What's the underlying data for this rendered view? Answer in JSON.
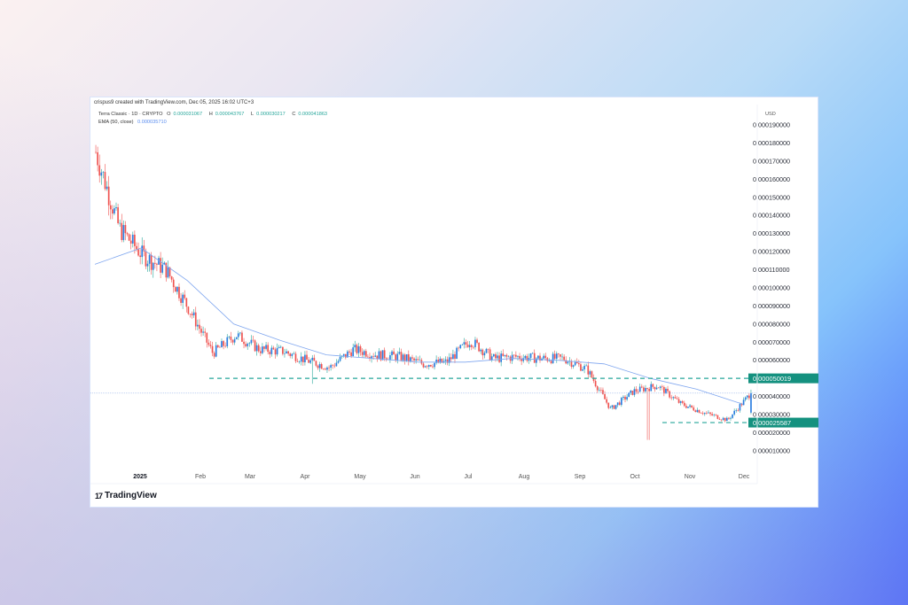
{
  "header": {
    "credit": "crispus9 created with TradingView.com, Dec 05, 2025 16:02 UTC+3"
  },
  "legend": {
    "symbol": "Terra Classic · 1D · CRYPTO",
    "open_label": "O",
    "open": "0.000031067",
    "high_label": "H",
    "high": "0.000043767",
    "low_label": "L",
    "low": "0.000030217",
    "close_label": "C",
    "close": "0.000041863",
    "ema_label": "EMA (50, close)",
    "ema_value": "0.000035710"
  },
  "axis": {
    "currency": "USD"
  },
  "footer": {
    "brand": "TradingView",
    "brand_mark": "17"
  },
  "colors": {
    "up": "#2a7de1",
    "up_wick": "#26a69a",
    "down": "#ef5350",
    "ema": "#7fa6ef",
    "level": "#26a69a",
    "level_label_bg": "#14917f"
  },
  "chart_data": {
    "type": "candlestick",
    "title": "Terra Classic · 1D · CRYPTO",
    "xlabel": "",
    "ylabel": "USD",
    "ylim": [
      5e-06,
      0.000195
    ],
    "y_ticks": [
      "0.000190000",
      "0.000180000",
      "0.000170000",
      "0.000160000",
      "0.000150000",
      "0.000140000",
      "0.000130000",
      "0.000120000",
      "0.000110000",
      "0.000100000",
      "0.000090000",
      "0.000080000",
      "0.000070000",
      "0.000060000",
      "0.000040000",
      "0.000030000",
      "0.000020000",
      "0.000010000"
    ],
    "x_ticks": [
      "2025",
      "Feb",
      "Mar",
      "Apr",
      "May",
      "Jun",
      "Jul",
      "Aug",
      "Sep",
      "Oct",
      "Nov",
      "Dec"
    ],
    "grid": false,
    "ohlc_last": {
      "open": 3.1067e-05,
      "high": 4.3767e-05,
      "low": 3.0217e-05,
      "close": 4.1863e-05
    },
    "levels": [
      {
        "name": "resistance",
        "value": 5.0019e-05,
        "label": "0.000050019"
      },
      {
        "name": "support",
        "value": 2.5587e-05,
        "label": "0.000025587"
      }
    ],
    "current_price_line": 4.1863e-05,
    "ema": {
      "period": 50,
      "last": 3.571e-05
    },
    "approx_close_series": {
      "x": [
        "Dec-24 mid",
        "Dec-24 late",
        "2025 early Jan",
        "Jan mid",
        "Jan late",
        "Feb early",
        "Feb mid",
        "Mar early",
        "Mar mid",
        "Apr early",
        "Apr mid",
        "May early",
        "May mid",
        "Jun early",
        "Jun mid",
        "Jul early",
        "Jul mid",
        "Aug early",
        "Aug mid",
        "Sep early",
        "Sep mid",
        "Oct early",
        "Oct 10",
        "Oct mid",
        "Oct late",
        "Nov early",
        "Nov mid",
        "Nov late",
        "Dec early"
      ],
      "values": [
        0.000175,
        0.000133,
        0.000118,
        0.00011,
        8.8e-05,
        6.4e-05,
        7.4e-05,
        6.6e-05,
        6.5e-05,
        6e-05,
        5.6e-05,
        6.6e-05,
        6.3e-05,
        6.2e-05,
        5.8e-05,
        5.9e-05,
        7.1e-05,
        6.1e-05,
        6.2e-05,
        6.1e-05,
        6.1e-05,
        5.5e-05,
        3.3e-05,
        4.3e-05,
        4.6e-05,
        3.6e-05,
        3.1e-05,
        2.7e-05,
        4.2e-05
      ]
    },
    "approx_ema_series": {
      "x": [
        "Dec-24 mid",
        "2025 early Jan",
        "Jan late",
        "Feb mid",
        "Mar mid",
        "Apr mid",
        "May mid",
        "Jun mid",
        "Jul mid",
        "Aug mid",
        "Sep mid",
        "Oct early",
        "Oct late",
        "Nov mid",
        "Dec early"
      ],
      "values": [
        0.000113,
        0.000122,
        0.000104,
        8e-05,
        7.1e-05,
        6.3e-05,
        6.1e-05,
        5.9e-05,
        5.9e-05,
        6.1e-05,
        6e-05,
        5.8e-05,
        5e-05,
        4.4e-05,
        3.57e-05
      ]
    }
  }
}
